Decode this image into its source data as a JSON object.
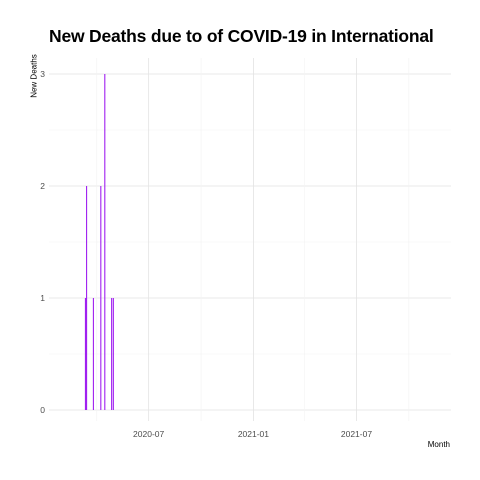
{
  "chart_data": {
    "type": "bar",
    "title": "New Deaths due to of COVID-19 in International",
    "xlabel": "Month",
    "ylabel": "New Deaths",
    "x_tick_labels": [
      "2020-07",
      "2021-01",
      "2021-07"
    ],
    "y_tick_labels": [
      "0",
      "1",
      "2",
      "3"
    ],
    "ylim": [
      0,
      3
    ],
    "xlim": [
      "2020-01-08",
      "2021-12-14"
    ],
    "grid": true,
    "bar_color": "#a020f0",
    "points": [
      {
        "x": "2020-03-12",
        "y": 1
      },
      {
        "x": "2020-03-13",
        "y": 1
      },
      {
        "x": "2020-03-14",
        "y": 2
      },
      {
        "x": "2020-03-26",
        "y": 1
      },
      {
        "x": "2020-04-08",
        "y": 2
      },
      {
        "x": "2020-04-15",
        "y": 3
      },
      {
        "x": "2020-04-27",
        "y": 1
      },
      {
        "x": "2020-04-30",
        "y": 1
      }
    ]
  }
}
